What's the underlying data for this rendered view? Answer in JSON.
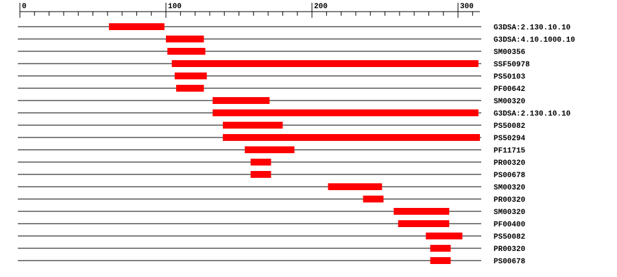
{
  "chart_data": {
    "type": "range_bar",
    "categories": [
      "G3DSA:2.130.10.10",
      "G3DSA:4.10.1000.10",
      "SM00356",
      "SSF50978",
      "PS50103",
      "PF00642",
      "SM00320",
      "G3DSA:2.130.10.10",
      "PS50082",
      "PS50294",
      "PF11715",
      "PR00320",
      "PS00678",
      "SM00320",
      "PR00320",
      "SM00320",
      "PF00400",
      "PS50082",
      "PR00320",
      "PS00678"
    ],
    "starts": [
      61,
      100,
      101,
      104,
      106,
      107,
      132,
      132,
      139,
      139,
      154,
      158,
      158,
      211,
      235,
      256,
      259,
      278,
      281,
      281
    ],
    "ends": [
      99,
      126,
      127,
      314,
      128,
      126,
      171,
      314,
      180,
      315,
      188,
      172,
      172,
      248,
      249,
      294,
      294,
      303,
      295,
      295
    ],
    "color": "#ff0000",
    "xlim": [
      0,
      315
    ],
    "xticks": [
      0,
      100,
      200,
      300
    ],
    "xminorticks": [
      10,
      20,
      30,
      40,
      50,
      60,
      70,
      80,
      90,
      110,
      120,
      130,
      140,
      150,
      160,
      170,
      180,
      190,
      210,
      220,
      230,
      240,
      250,
      260,
      270,
      280,
      290,
      310
    ]
  }
}
